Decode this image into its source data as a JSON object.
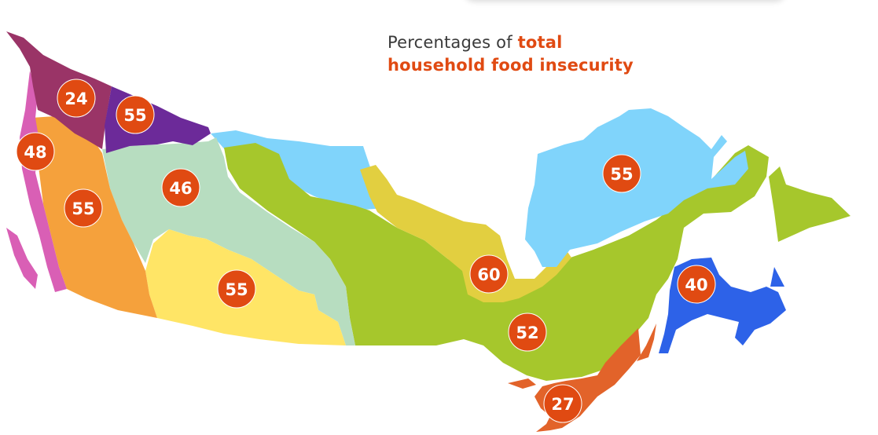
{
  "legend": {
    "lead": "Percentages of ",
    "emphasis_line1": "total",
    "emphasis_line2": "household food insecurity"
  },
  "colors": {
    "badge": "#e04a12",
    "accent_text": "#e04a12"
  },
  "regions": [
    {
      "id": "region-northwest",
      "color": "#9a3467",
      "value": 24
    },
    {
      "id": "region-north",
      "color": "#6c2a99",
      "value": 55
    },
    {
      "id": "region-coast",
      "color": "#d95fb5",
      "value": 48
    },
    {
      "id": "region-interior-west",
      "color": "#f5a13c",
      "value": 55
    },
    {
      "id": "region-central-west",
      "color": "#b7ddc0",
      "value": 46
    },
    {
      "id": "region-south-central",
      "color": "#ffe566",
      "value": 55
    },
    {
      "id": "region-north-central",
      "color": "#e2cf40",
      "value": 60
    },
    {
      "id": "region-central",
      "color": "#a6c72c",
      "value": 52
    },
    {
      "id": "region-northeast",
      "color": "#80d4fb",
      "value": 55
    },
    {
      "id": "region-east",
      "color": "#2d62e8",
      "value": 40
    },
    {
      "id": "region-south",
      "color": "#e2632a",
      "value": 27
    }
  ]
}
